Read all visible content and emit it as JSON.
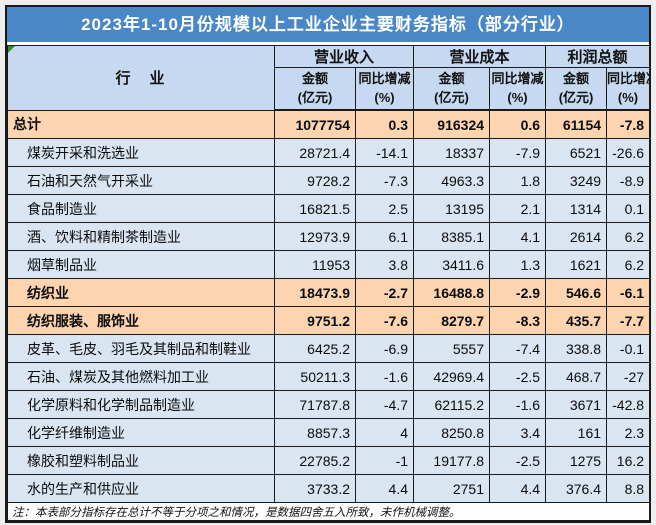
{
  "title": "2023年1-10月份规模以上工业企业主要财务指标（部分行业）",
  "note": "注：本表部分指标存在总计不等于分项之和情况，是数据四舍五入所致，未作机械调整。",
  "header": {
    "industry": "行　业",
    "groups": [
      {
        "label": "营业收入"
      },
      {
        "label": "营业成本"
      },
      {
        "label": "利润总额"
      }
    ],
    "amount": {
      "line1": "金额",
      "line2": "(亿元)"
    },
    "yoy": {
      "line1": "同比增减",
      "line2": "(%)"
    }
  },
  "table": {
    "rows": [
      {
        "industry": "总计",
        "values": [
          "1077754",
          "0.3",
          "916324",
          "0.6",
          "61154",
          "-7.8"
        ],
        "highlight": true,
        "indent": false
      },
      {
        "industry": "煤炭开采和洗选业",
        "values": [
          "28721.4",
          "-14.1",
          "18337",
          "-7.9",
          "6521",
          "-26.6"
        ],
        "highlight": false,
        "indent": true
      },
      {
        "industry": "石油和天然气开采业",
        "values": [
          "9728.2",
          "-7.3",
          "4963.3",
          "1.8",
          "3249",
          "-8.9"
        ],
        "highlight": false,
        "indent": true
      },
      {
        "industry": "食品制造业",
        "values": [
          "16821.5",
          "2.5",
          "13195",
          "2.1",
          "1314",
          "0.1"
        ],
        "highlight": false,
        "indent": true
      },
      {
        "industry": "酒、饮料和精制茶制造业",
        "values": [
          "12973.9",
          "6.1",
          "8385.1",
          "4.1",
          "2614",
          "6.2"
        ],
        "highlight": false,
        "indent": true
      },
      {
        "industry": "烟草制品业",
        "values": [
          "11953",
          "3.8",
          "3411.6",
          "1.3",
          "1621",
          "6.2"
        ],
        "highlight": false,
        "indent": true
      },
      {
        "industry": "纺织业",
        "values": [
          "18473.9",
          "-2.7",
          "16488.8",
          "-2.9",
          "546.6",
          "-6.1"
        ],
        "highlight": true,
        "indent": true
      },
      {
        "industry": "纺织服装、服饰业",
        "values": [
          "9751.2",
          "-7.6",
          "8279.7",
          "-8.3",
          "435.7",
          "-7.7"
        ],
        "highlight": true,
        "indent": true
      },
      {
        "industry": "皮革、毛皮、羽毛及其制品和制鞋业",
        "values": [
          "6425.2",
          "-6.9",
          "5557",
          "-7.4",
          "338.8",
          "-0.1"
        ],
        "highlight": false,
        "indent": true
      },
      {
        "industry": "石油、煤炭及其他燃料加工业",
        "values": [
          "50211.3",
          "-1.6",
          "42969.4",
          "-2.5",
          "468.7",
          "-27"
        ],
        "highlight": false,
        "indent": true
      },
      {
        "industry": "化学原料和化学制品制造业",
        "values": [
          "71787.8",
          "-4.7",
          "62115.2",
          "-1.6",
          "3671",
          "-42.8"
        ],
        "highlight": false,
        "indent": true
      },
      {
        "industry": "化学纤维制造业",
        "values": [
          "8857.3",
          "4",
          "8250.8",
          "3.4",
          "161",
          "2.3"
        ],
        "highlight": false,
        "indent": true
      },
      {
        "industry": "橡胶和塑料制品业",
        "values": [
          "22785.2",
          "-1",
          "19177.8",
          "-2.5",
          "1275",
          "16.2"
        ],
        "highlight": false,
        "indent": true
      },
      {
        "industry": "水的生产和供应业",
        "values": [
          "3733.2",
          "4.4",
          "2751",
          "4.4",
          "376.4",
          "8.8"
        ],
        "highlight": false,
        "indent": true
      }
    ]
  },
  "chart_data": {
    "type": "table",
    "title": "2023年1-10月份规模以上工业企业主要财务指标（部分行业）",
    "columns": [
      "行业",
      "营业收入-金额(亿元)",
      "营业收入-同比增减(%)",
      "营业成本-金额(亿元)",
      "营业成本-同比增减(%)",
      "利润总额-金额(亿元)",
      "利润总额-同比增减(%)"
    ],
    "rows": [
      [
        "总计",
        1077754,
        0.3,
        916324,
        0.6,
        61154,
        -7.8
      ],
      [
        "煤炭开采和洗选业",
        28721.4,
        -14.1,
        18337,
        -7.9,
        6521,
        -26.6
      ],
      [
        "石油和天然气开采业",
        9728.2,
        -7.3,
        4963.3,
        1.8,
        3249,
        -8.9
      ],
      [
        "食品制造业",
        16821.5,
        2.5,
        13195,
        2.1,
        1314,
        0.1
      ],
      [
        "酒、饮料和精制茶制造业",
        12973.9,
        6.1,
        8385.1,
        4.1,
        2614,
        6.2
      ],
      [
        "烟草制品业",
        11953,
        3.8,
        3411.6,
        1.3,
        1621,
        6.2
      ],
      [
        "纺织业",
        18473.9,
        -2.7,
        16488.8,
        -2.9,
        546.6,
        -6.1
      ],
      [
        "纺织服装、服饰业",
        9751.2,
        -7.6,
        8279.7,
        -8.3,
        435.7,
        -7.7
      ],
      [
        "皮革、毛皮、羽毛及其制品和制鞋业",
        6425.2,
        -6.9,
        5557,
        -7.4,
        338.8,
        -0.1
      ],
      [
        "石油、煤炭及其他燃料加工业",
        50211.3,
        -1.6,
        42969.4,
        -2.5,
        468.7,
        -27
      ],
      [
        "化学原料和化学制品制造业",
        71787.8,
        -4.7,
        62115.2,
        -1.6,
        3671,
        -42.8
      ],
      [
        "化学纤维制造业",
        8857.3,
        4,
        8250.8,
        3.4,
        161,
        2.3
      ],
      [
        "橡胶和塑料制品业",
        22785.2,
        -1,
        19177.8,
        -2.5,
        1275,
        16.2
      ],
      [
        "水的生产和供应业",
        3733.2,
        4.4,
        2751,
        4.4,
        376.4,
        8.8
      ]
    ],
    "highlighted_rows": [
      "总计",
      "纺织业",
      "纺织服装、服饰业"
    ]
  },
  "colors": {
    "title_bar": "#4a87c6",
    "title_text": "#ffffff",
    "header_fill": "#c6d9f0",
    "row_fill": "#dae5f2",
    "highlight_fill": "#fcd5b0",
    "border": "#1a1a1a",
    "green_marker": "#2f8f2f",
    "page_background": "#eeeeee"
  }
}
